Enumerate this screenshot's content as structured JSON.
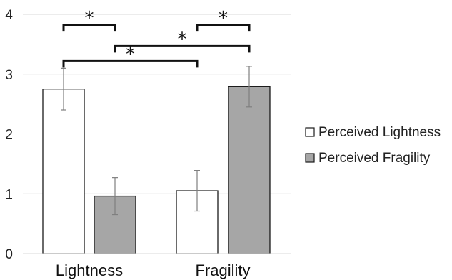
{
  "chart_data": {
    "type": "bar",
    "categories": [
      "Lightness",
      "Fragility"
    ],
    "series": [
      {
        "name": "Perceived Lightness",
        "values": [
          2.75,
          1.05
        ],
        "errors": [
          0.35,
          0.34
        ],
        "color": "#ffffff"
      },
      {
        "name": "Perceived Fragility",
        "values": [
          0.96,
          2.79
        ],
        "errors": [
          0.31,
          0.34
        ],
        "color": "#a6a6a6"
      }
    ],
    "ylim": [
      0,
      4
    ],
    "yticks": [
      "0",
      "1",
      "2",
      "3",
      "4"
    ],
    "grid": true,
    "legend_position": "right",
    "significance": [
      {
        "from": {
          "category": 0,
          "series": 0
        },
        "to": {
          "category": 0,
          "series": 1
        },
        "label": "*",
        "y": 3.82
      },
      {
        "from": {
          "category": 1,
          "series": 0
        },
        "to": {
          "category": 1,
          "series": 1
        },
        "label": "*",
        "y": 3.82
      },
      {
        "from": {
          "category": 0,
          "series": 1
        },
        "to": {
          "category": 1,
          "series": 1
        },
        "label": "*",
        "y": 3.47
      },
      {
        "from": {
          "category": 0,
          "series": 0
        },
        "to": {
          "category": 1,
          "series": 0
        },
        "label": "*",
        "y": 3.22
      }
    ]
  }
}
